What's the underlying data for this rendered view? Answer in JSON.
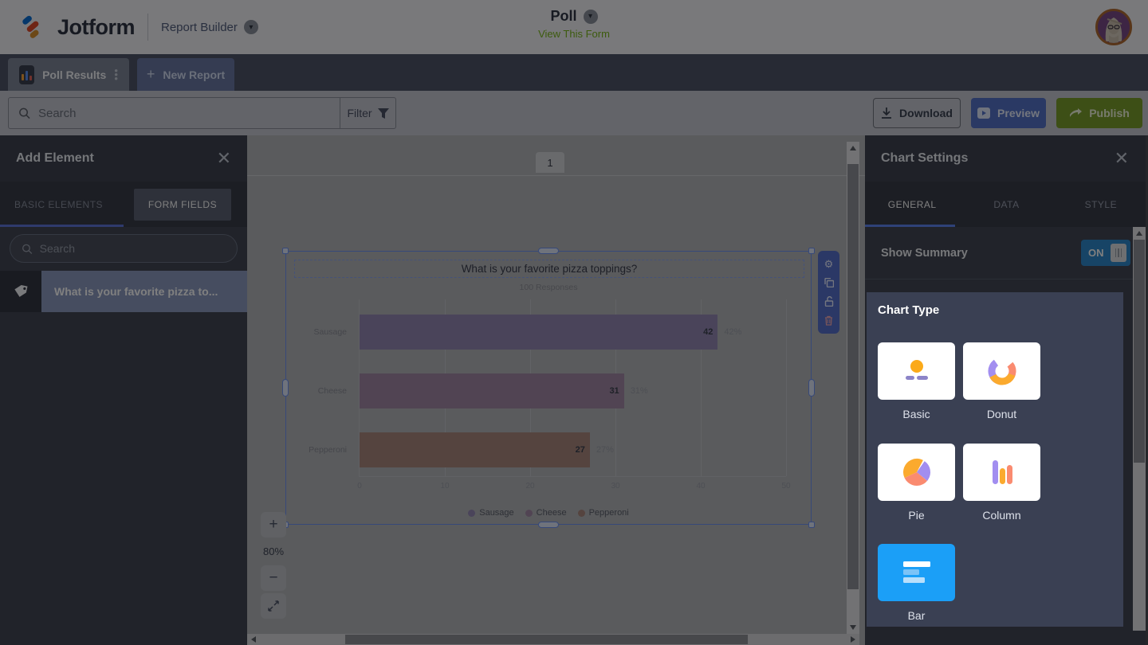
{
  "header": {
    "brand": "Jotform",
    "product": "Report Builder",
    "form_title": "Poll",
    "view_form_label": "View This Form"
  },
  "report_tabs": {
    "active_tab": "Poll Results",
    "new_report": "New Report"
  },
  "toolbar": {
    "search_placeholder": "Search",
    "filter_label": "Filter",
    "download_label": "Download",
    "preview_label": "Preview",
    "publish_label": "Publish"
  },
  "left_panel": {
    "title": "Add Element",
    "tab_basic": "BASIC ELEMENTS",
    "tab_form_fields": "FORM FIELDS",
    "search_placeholder": "Search",
    "items": [
      {
        "label": "What is your favorite pizza to..."
      }
    ]
  },
  "canvas": {
    "page_number": "1",
    "zoom_level": "80%",
    "zoom_in": "+",
    "zoom_out": "−"
  },
  "chart_settings": {
    "title": "Chart Settings",
    "tabs": [
      "GENERAL",
      "DATA",
      "STYLE"
    ],
    "show_summary_label": "Show Summary",
    "toggle_state": "ON",
    "chart_type_label": "Chart Type",
    "options": [
      {
        "label": "Basic"
      },
      {
        "label": "Donut"
      },
      {
        "label": "Pie"
      },
      {
        "label": "Column"
      },
      {
        "label": "Bar",
        "selected": true
      }
    ],
    "selected_color": "#1b9ff7",
    "accent_blue": "#5e84f0",
    "toggle_color": "#2f89cc"
  },
  "chart_data": {
    "type": "bar",
    "title": "What is your favorite pizza toppings?",
    "subtitle": "100 Responses",
    "categories": [
      "Sausage",
      "Cheese",
      "Pepperoni"
    ],
    "values": [
      42,
      31,
      27
    ],
    "percent_labels": [
      "42%",
      "31%",
      "27%"
    ],
    "xticks": [
      0,
      10,
      20,
      30,
      40,
      50
    ],
    "xlim": [
      0,
      50
    ],
    "legend": [
      "Sausage",
      "Cheese",
      "Pepperoni"
    ],
    "colors": [
      "#9488b4",
      "#a389a6",
      "#ab887f"
    ],
    "legend_position": "bottom",
    "grid": true,
    "orientation": "horizontal"
  }
}
